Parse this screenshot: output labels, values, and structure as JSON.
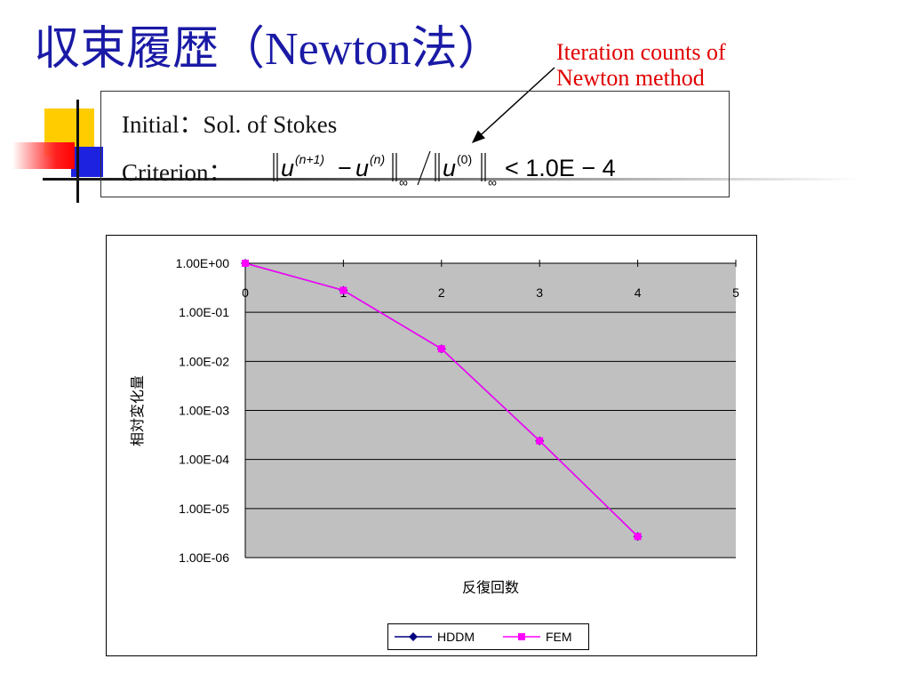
{
  "slide": {
    "title_jp_1": "収束履歴（",
    "title_latin": "Newton",
    "title_jp_2": "法）",
    "annotation": "Iteration counts of\nNewton method",
    "initial_label": "Initial",
    "initial_colon": "：",
    "initial_value": "Sol. of Stokes",
    "criterion_label": "Criterion",
    "criterion_colon": "：",
    "formula": {
      "u": "u",
      "sup_n1": "(n+1)",
      "minus": "−",
      "sup_n": "(n)",
      "sup_0": "(0)",
      "inf": "∞",
      "slash": "/",
      "rhs": "< 1.0E − 4"
    }
  },
  "chart_data": {
    "type": "line",
    "ylabel": "相対変化量",
    "xlabel": "反復回数",
    "yscale": "log",
    "ylim": [
      1e-06,
      1
    ],
    "xlim": [
      0,
      5
    ],
    "x_ticks": [
      "0",
      "1",
      "2",
      "3",
      "4",
      "5"
    ],
    "y_ticks": [
      "1.00E+00",
      "1.00E-01",
      "1.00E-02",
      "1.00E-03",
      "1.00E-04",
      "1.00E-05",
      "1.00E-06"
    ],
    "grid": true,
    "legend": "bottom",
    "x_axis_position": "top",
    "series": [
      {
        "name": "HDDM",
        "color": "#000080",
        "marker": "diamond",
        "x": [
          0,
          1,
          2,
          3,
          4
        ],
        "values": [
          1.0,
          0.28,
          0.018,
          0.00024,
          2.7e-06
        ]
      },
      {
        "name": "FEM",
        "color": "#ff00ff",
        "marker": "square",
        "x": [
          0,
          1,
          2,
          3,
          4
        ],
        "values": [
          1.0,
          0.28,
          0.018,
          0.00024,
          2.7e-06
        ]
      }
    ]
  }
}
